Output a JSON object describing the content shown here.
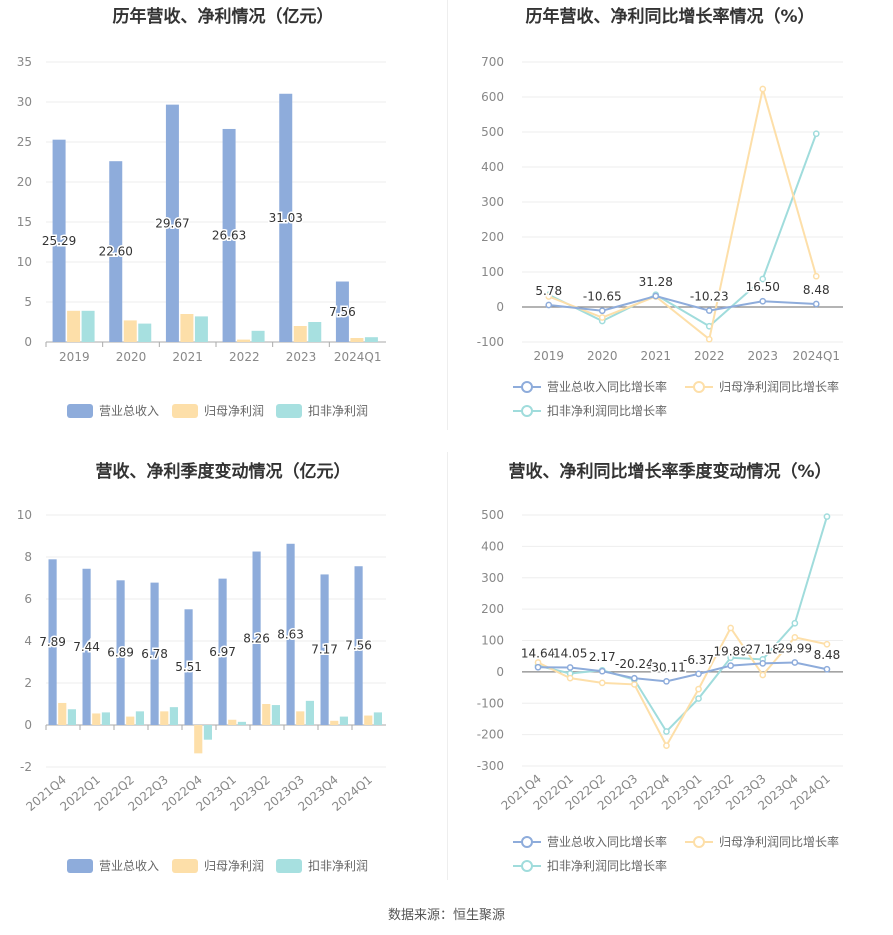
{
  "colors": {
    "revenue": "#8eacdb",
    "parent_profit": "#fddfa9",
    "deducted_profit": "#a7e0e0",
    "revenue_line": "#8eacdb",
    "parent_line": "#fddfa9",
    "deducted_line": "#a0dcdc",
    "axis": "#999999",
    "grid": "#eeeeee"
  },
  "source": "数据来源：恒生聚源",
  "chart_data": [
    {
      "type": "bar",
      "title": "历年营收、净利情况（亿元）",
      "categories": [
        "2019",
        "2020",
        "2021",
        "2022",
        "2023",
        "2024Q1"
      ],
      "yticks": [
        "0",
        "5",
        "10",
        "15",
        "20",
        "25",
        "30",
        "35"
      ],
      "ylim": [
        0,
        35
      ],
      "series": [
        {
          "name": "营业总收入",
          "values": [
            25.29,
            22.6,
            29.67,
            26.63,
            31.03,
            7.56
          ],
          "labels": [
            "25.29",
            "22.60",
            "29.67",
            "26.63",
            "31.03",
            "7.56"
          ]
        },
        {
          "name": "归母净利润",
          "values": [
            3.9,
            2.7,
            3.5,
            0.3,
            2.0,
            0.5
          ]
        },
        {
          "name": "扣非净利润",
          "values": [
            3.9,
            2.3,
            3.2,
            1.4,
            2.5,
            0.6
          ]
        }
      ],
      "legend": "bottom"
    },
    {
      "type": "line",
      "title": "历年营收、净利同比增长率情况（%）",
      "categories": [
        "2019",
        "2020",
        "2021",
        "2022",
        "2023",
        "2024Q1"
      ],
      "yticks": [
        "-100",
        "0",
        "100",
        "200",
        "300",
        "400",
        "500",
        "600",
        "700"
      ],
      "ylim": [
        -100,
        700
      ],
      "series": [
        {
          "name": "营业总收入同比增长率",
          "values": [
            5.78,
            -10.65,
            31.28,
            -10.23,
            16.5,
            8.48
          ],
          "labels": [
            "5.78",
            "-10.65",
            "31.28",
            "-10.23",
            "16.50",
            "8.48"
          ]
        },
        {
          "name": "归母净利润同比增长率",
          "values": [
            30,
            -30,
            30,
            -92,
            623,
            88
          ]
        },
        {
          "name": "扣非净利润同比增长率",
          "values": [
            35,
            -40,
            35,
            -55,
            80,
            495
          ]
        }
      ],
      "legend": "bottom"
    },
    {
      "type": "bar",
      "title": "营收、净利季度变动情况（亿元）",
      "categories": [
        "2021Q4",
        "2022Q1",
        "2022Q2",
        "2022Q3",
        "2022Q4",
        "2023Q1",
        "2023Q2",
        "2023Q3",
        "2023Q4",
        "2024Q1"
      ],
      "yticks": [
        "-2",
        "0",
        "2",
        "4",
        "6",
        "8",
        "10"
      ],
      "ylim": [
        -2,
        10
      ],
      "series": [
        {
          "name": "营业总收入",
          "values": [
            7.89,
            7.44,
            6.89,
            6.78,
            5.51,
            6.97,
            8.26,
            8.63,
            7.17,
            7.56
          ],
          "labels": [
            "7.89",
            "7.44",
            "6.89",
            "6.78",
            "5.51",
            "6.97",
            "8.26",
            "8.63",
            "7.17",
            "7.56"
          ]
        },
        {
          "name": "归母净利润",
          "values": [
            1.05,
            0.55,
            0.4,
            0.65,
            -1.35,
            0.25,
            1.0,
            0.65,
            0.2,
            0.45
          ]
        },
        {
          "name": "扣非净利润",
          "values": [
            0.75,
            0.6,
            0.65,
            0.85,
            -0.7,
            0.15,
            0.95,
            1.15,
            0.4,
            0.6
          ]
        }
      ],
      "legend": "bottom"
    },
    {
      "type": "line",
      "title": "营收、净利同比增长率季度变动情况（%）",
      "categories": [
        "2021Q4",
        "2022Q1",
        "2022Q2",
        "2022Q3",
        "2022Q4",
        "2023Q1",
        "2023Q2",
        "2023Q3",
        "2023Q4",
        "2024Q1"
      ],
      "yticks": [
        "-300",
        "-200",
        "-100",
        "0",
        "100",
        "200",
        "300",
        "400",
        "500"
      ],
      "ylim": [
        -300,
        500
      ],
      "series": [
        {
          "name": "营业总收入同比增长率",
          "values": [
            14.64,
            14.05,
            2.17,
            -20.24,
            -30.11,
            -6.37,
            19.89,
            27.18,
            29.99,
            8.48
          ],
          "labels": [
            "14.64",
            "14.05",
            "2.17",
            "-20.24",
            "-30.11",
            "-6.37",
            "19.89",
            "27.18",
            "29.99",
            "8.48"
          ]
        },
        {
          "name": "归母净利润同比增长率",
          "values": [
            30,
            -20,
            -35,
            -40,
            -235,
            -55,
            140,
            -10,
            110,
            88
          ]
        },
        {
          "name": "扣非净利润同比增长率",
          "values": [
            20,
            -5,
            5,
            -25,
            -190,
            -85,
            45,
            40,
            155,
            495
          ]
        }
      ],
      "legend": "bottom"
    }
  ]
}
